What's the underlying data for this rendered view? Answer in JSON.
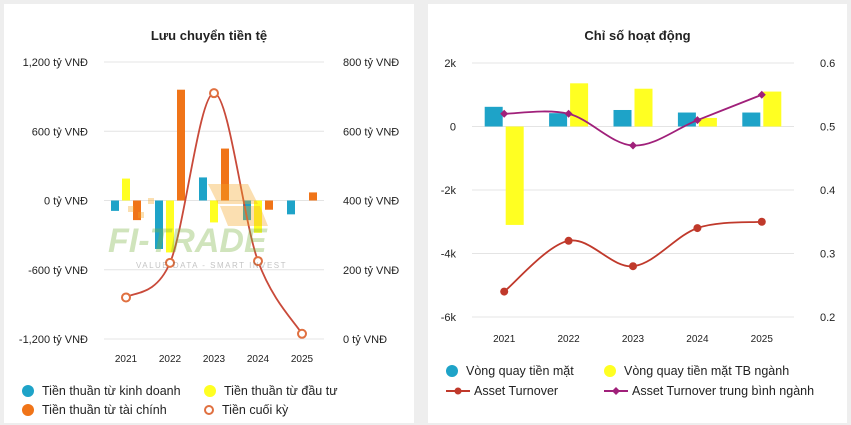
{
  "left_chart": {
    "title": "Lưu chuyển tiền tệ",
    "chart_data": {
      "type": "bar",
      "title": "Lưu chuyển tiền tệ",
      "categories": [
        "2021",
        "2022",
        "2023",
        "2024",
        "2025"
      ],
      "y_left": {
        "ticks": [
          1200,
          600,
          0,
          -600,
          -1200
        ],
        "tick_labels": [
          "1,200 tỷ VNĐ",
          "600 tỷ VNĐ",
          "0 tỷ VNĐ",
          "-600 tỷ VNĐ",
          "-1,200 tỷ VNĐ"
        ],
        "ylim": [
          -1200,
          1200
        ]
      },
      "y_right": {
        "ticks": [
          800,
          600,
          400,
          200,
          0
        ],
        "tick_labels": [
          "800 tỷ VNĐ",
          "600 tỷ VNĐ",
          "400 tỷ VNĐ",
          "200 tỷ VNĐ",
          "0 tỷ VNĐ"
        ],
        "ylim": [
          0,
          800
        ]
      },
      "series": [
        {
          "name": "Tiền thuần từ kinh doanh",
          "type": "bar",
          "axis": "left",
          "color": "#1ea3c8",
          "values": [
            -90,
            -420,
            200,
            -170,
            -120
          ]
        },
        {
          "name": "Tiền thuần từ đầu tư",
          "type": "bar",
          "axis": "left",
          "color": "#ffff22",
          "values": [
            190,
            -450,
            -190,
            -280,
            0
          ]
        },
        {
          "name": "Tiền thuần từ tài chính",
          "type": "bar",
          "axis": "left",
          "color": "#f07418",
          "values": [
            -170,
            960,
            450,
            -80,
            70
          ]
        },
        {
          "name": "Tiền cuối kỳ",
          "type": "line",
          "axis": "right",
          "color": "#c0392b",
          "values": [
            120,
            220,
            710,
            225,
            15
          ]
        }
      ]
    }
  },
  "right_chart": {
    "title": "Chỉ số hoạt động",
    "chart_data": {
      "type": "bar",
      "title": "Chỉ số hoạt động",
      "categories": [
        "2021",
        "2022",
        "2023",
        "2024",
        "2025"
      ],
      "y_left": {
        "ticks": [
          2000,
          0,
          -2000,
          -4000,
          -6000
        ],
        "tick_labels": [
          "2k",
          "0",
          "-2k",
          "-4k",
          "-6k"
        ],
        "ylim": [
          -6000,
          2000
        ]
      },
      "y_right": {
        "ticks": [
          0.6,
          0.5,
          0.4,
          0.3,
          0.2
        ],
        "tick_labels": [
          "0.6",
          "0.5",
          "0.4",
          "0.3",
          "0.2"
        ],
        "ylim": [
          0.2,
          0.6
        ]
      },
      "series": [
        {
          "name": "Vòng quay tiền mặt",
          "type": "bar",
          "axis": "left",
          "color": "#1ea3c8",
          "values": [
            620,
            420,
            520,
            440,
            440
          ]
        },
        {
          "name": "Vòng quay tiền mặt TB ngành",
          "type": "bar",
          "axis": "left",
          "color": "#ffff22",
          "values": [
            -3100,
            1360,
            1190,
            270,
            1100
          ]
        },
        {
          "name": "Asset Turnover",
          "type": "line",
          "axis": "right",
          "color": "#c0392b",
          "values": [
            0.24,
            0.32,
            0.28,
            0.34,
            0.35
          ]
        },
        {
          "name": "Asset Turnover trung bình ngành",
          "type": "line",
          "axis": "right",
          "color": "#a0207a",
          "values": [
            0.52,
            0.52,
            0.47,
            0.51,
            0.55
          ]
        }
      ]
    }
  },
  "watermark": {
    "brand": "FI-TRADE",
    "tagline": "VALUE DATA - SMART INVEST"
  }
}
